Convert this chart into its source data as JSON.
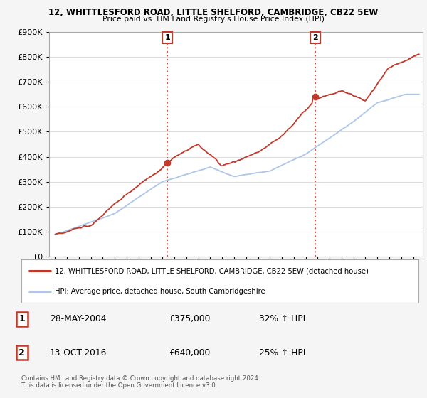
{
  "title1": "12, WHITTLESFORD ROAD, LITTLE SHELFORD, CAMBRIDGE, CB22 5EW",
  "title2": "Price paid vs. HM Land Registry's House Price Index (HPI)",
  "legend_line1": "12, WHITTLESFORD ROAD, LITTLE SHELFORD, CAMBRIDGE, CB22 5EW (detached house)",
  "legend_line2": "HPI: Average price, detached house, South Cambridgeshire",
  "annotation1_date": "28-MAY-2004",
  "annotation1_price": "£375,000",
  "annotation1_hpi": "32% ↑ HPI",
  "annotation2_date": "13-OCT-2016",
  "annotation2_price": "£640,000",
  "annotation2_hpi": "25% ↑ HPI",
  "footer": "Contains HM Land Registry data © Crown copyright and database right 2024.\nThis data is licensed under the Open Government Licence v3.0.",
  "sale1_year": 2004.41,
  "sale1_value": 375000,
  "sale2_year": 2016.79,
  "sale2_value": 640000,
  "hpi_color": "#aec6e8",
  "price_color": "#c0392b",
  "dashed_color": "#c0392b",
  "ylim_min": 0,
  "ylim_max": 900000,
  "yticks": [
    0,
    100000,
    200000,
    300000,
    400000,
    500000,
    600000,
    700000,
    800000,
    900000
  ],
  "xlim_min": 1994.5,
  "xlim_max": 2025.8,
  "background_color": "#f5f5f5",
  "plot_bg_color": "#ffffff"
}
